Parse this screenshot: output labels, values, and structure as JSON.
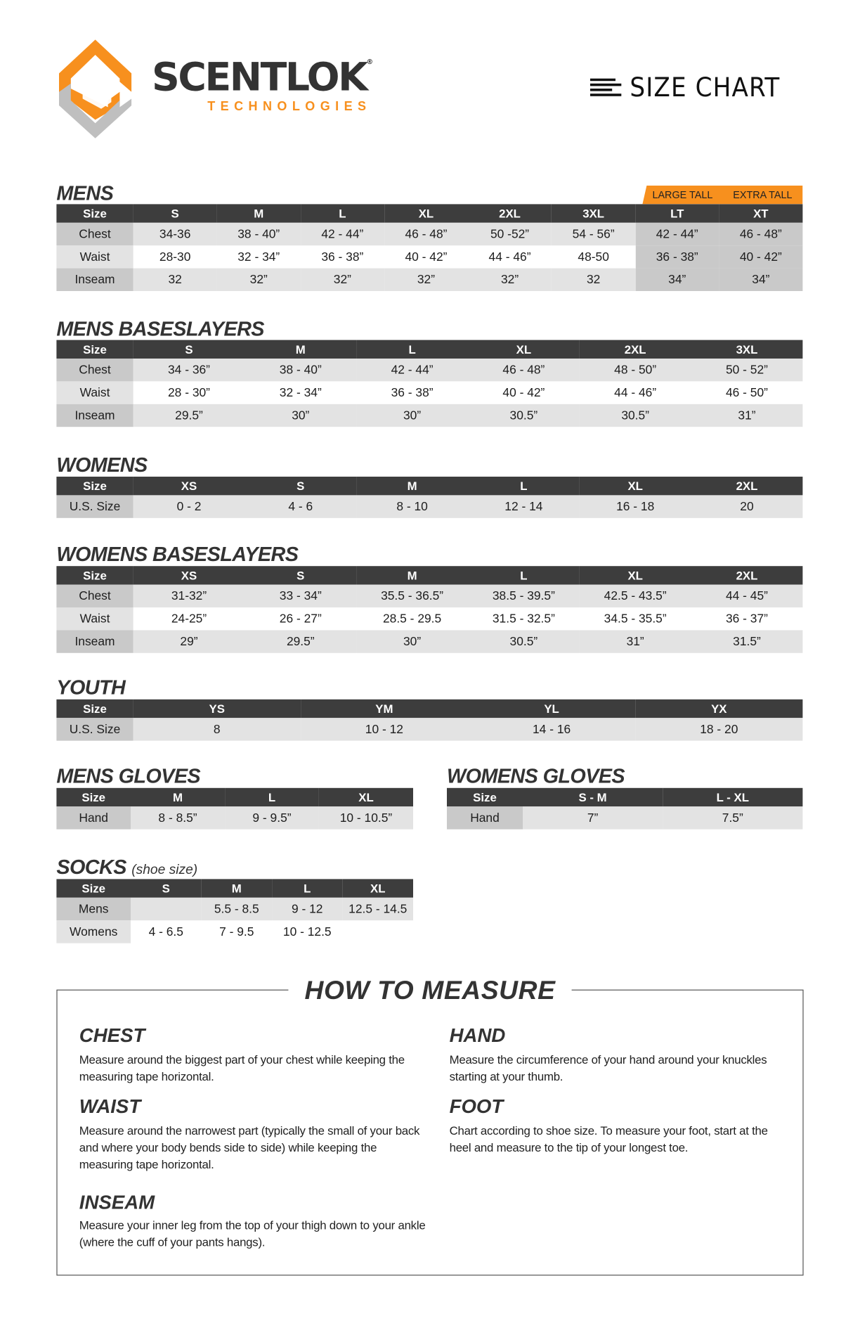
{
  "brand": {
    "name": "SCENTLOK",
    "registered": "®",
    "tagline": "TECHNOLOGIES",
    "colors": {
      "orange": "#f7901e",
      "grey": "#c0c0c0",
      "dark": "#333333"
    }
  },
  "header": {
    "title": "SIZE CHART",
    "icon": "lines-icon"
  },
  "tables": {
    "mens": {
      "title": "MENS",
      "tall_labels": [
        "LARGE TALL",
        "EXTRA TALL"
      ],
      "header": [
        "Size",
        "S",
        "M",
        "L",
        "XL",
        "2XL",
        "3XL",
        "LT",
        "XT"
      ],
      "rows": [
        {
          "label": "Chest",
          "cells": [
            "34-36",
            "38 - 40”",
            "42 - 44”",
            "46 - 48”",
            "50 -52”",
            "54 - 56”",
            "42 - 44”",
            "46 - 48”"
          ]
        },
        {
          "label": "Waist",
          "cells": [
            "28-30",
            "32 - 34”",
            "36 - 38”",
            "40 - 42”",
            "44 - 46”",
            "48-50",
            "36 - 38”",
            "40 - 42”"
          ]
        },
        {
          "label": "Inseam",
          "cells": [
            "32",
            "32”",
            "32”",
            "32”",
            "32”",
            "32",
            "34”",
            "34”"
          ]
        }
      ]
    },
    "mens_baselayers": {
      "title": "MENS BASESLAYERS",
      "header": [
        "Size",
        "S",
        "M",
        "L",
        "XL",
        "2XL",
        "3XL"
      ],
      "rows": [
        {
          "label": "Chest",
          "cells": [
            "34 - 36”",
            "38 - 40”",
            "42 - 44”",
            "46 - 48”",
            "48 - 50”",
            "50 - 52”"
          ]
        },
        {
          "label": "Waist",
          "cells": [
            "28 - 30”",
            "32 - 34”",
            "36 - 38”",
            "40 - 42”",
            "44 - 46”",
            "46 - 50”"
          ]
        },
        {
          "label": "Inseam",
          "cells": [
            "29.5”",
            "30”",
            "30”",
            "30.5”",
            "30.5”",
            "31”"
          ]
        }
      ]
    },
    "womens": {
      "title": "WOMENS",
      "header": [
        "Size",
        "XS",
        "S",
        "M",
        "L",
        "XL",
        "2XL"
      ],
      "rows": [
        {
          "label": "U.S. Size",
          "cells": [
            "0 - 2",
            "4 - 6",
            "8 - 10",
            "12 - 14",
            "16 - 18",
            "20"
          ]
        }
      ]
    },
    "womens_baselayers": {
      "title": "WOMENS BASESLAYERS",
      "header": [
        "Size",
        "XS",
        "S",
        "M",
        "L",
        "XL",
        "2XL"
      ],
      "rows": [
        {
          "label": "Chest",
          "cells": [
            "31-32”",
            "33 - 34”",
            "35.5 - 36.5”",
            "38.5 - 39.5”",
            "42.5 - 43.5”",
            "44 - 45”"
          ]
        },
        {
          "label": "Waist",
          "cells": [
            "24-25”",
            "26 - 27”",
            "28.5 - 29.5",
            "31.5 - 32.5”",
            "34.5 - 35.5”",
            "36 - 37”"
          ]
        },
        {
          "label": "Inseam",
          "cells": [
            "29”",
            "29.5”",
            "30”",
            "30.5”",
            "31”",
            "31.5”"
          ]
        }
      ]
    },
    "youth": {
      "title": "YOUTH",
      "header": [
        "Size",
        "YS",
        "YM",
        "YL",
        "YX"
      ],
      "rows": [
        {
          "label": "U.S. Size",
          "cells": [
            "8",
            "10 - 12",
            "14 - 16",
            "18 - 20"
          ]
        }
      ]
    },
    "mens_gloves": {
      "title": "MENS GLOVES",
      "header": [
        "Size",
        "M",
        "L",
        "XL"
      ],
      "rows": [
        {
          "label": "Hand",
          "cells": [
            "8 - 8.5”",
            "9 - 9.5”",
            "10 - 10.5”"
          ]
        }
      ]
    },
    "womens_gloves": {
      "title": "WOMENS GLOVES",
      "header": [
        "Size",
        "S - M",
        "L - XL"
      ],
      "rows": [
        {
          "label": "Hand",
          "cells": [
            "7”",
            "7.5”"
          ]
        }
      ]
    },
    "socks": {
      "title": "SOCKS",
      "subtitle": "(shoe size)",
      "header": [
        "Size",
        "S",
        "M",
        "L",
        "XL"
      ],
      "rows": [
        {
          "label": "Mens",
          "cells": [
            "",
            "5.5 - 8.5",
            "9 - 12",
            "12.5 - 14.5"
          ]
        },
        {
          "label": "Womens",
          "cells": [
            "4 - 6.5",
            "7 - 9.5",
            "10 - 12.5",
            ""
          ]
        }
      ]
    }
  },
  "how_to_measure": {
    "title": "HOW TO MEASURE",
    "sections": [
      {
        "heading": "CHEST",
        "text": "Measure around the biggest part of your chest while keeping the measuring tape horizontal."
      },
      {
        "heading": "WAIST",
        "text": "Measure around the narrowest part (typically the small of your back and where your body bends side to side) while keeping the measuring tape horizontal."
      },
      {
        "heading": "INSEAM",
        "text": "Measure your inner leg from the top of your thigh down to your ankle (where the cuff of your pants hangs)."
      },
      {
        "heading": "HAND",
        "text": "Measure the circumference of your hand around your knuckles starting at your thumb."
      },
      {
        "heading": "FOOT",
        "text": "Chart according to shoe size. To measure your foot, start at the heel and measure to the tip of your longest toe."
      }
    ]
  }
}
